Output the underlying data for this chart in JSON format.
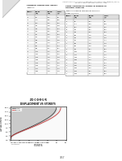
{
  "background_color": "#ffffff",
  "header_text": "International Journal of Science, Engineering and Technology Research (IJSETR)",
  "header_sub": "Volume X, Issue X, XXX XXXX, ISSN 2278 - 7798",
  "left_table_title1": "Showing comparison values",
  "left_table_title2": "Table 4.2",
  "right_header1": "Show comparison values of graphs in",
  "right_header2": "dynamic analysis",
  "right_table_title1": "Table 4.3 Showing comparison values of",
  "right_table_title2": "Shear in z-3 s-1",
  "graph_title1": "Z-D-C-D-R-U-R",
  "graph_title2": "DISPLACEMENT VS STOREYS",
  "graph_xlabel": "STOREYS",
  "graph_ylabel": "DISPLACEMENT",
  "graph_caption1": "Graph 4.4 Showing Displacement variations",
  "graph_caption2": "in z-3 s-2",
  "footer": "3457",
  "fold_color": "#e0e0e0",
  "table_border_color": "#888888",
  "text_color": "#111111",
  "header_color": "#555555"
}
